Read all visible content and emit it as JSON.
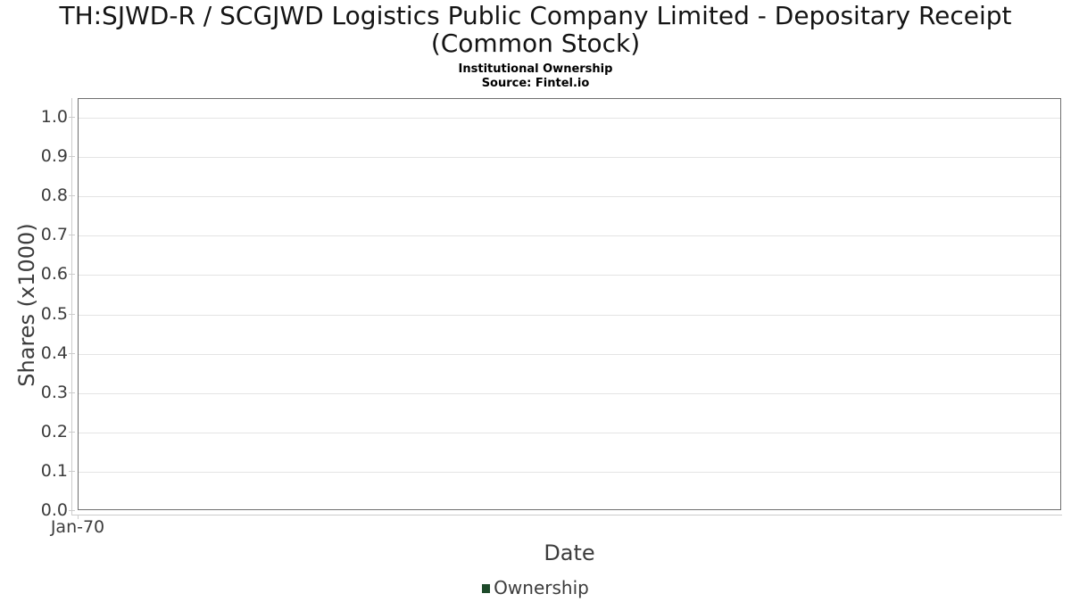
{
  "title_lines": [
    "TH:SJWD-R / SCGJWD Logistics Public Company Limited - Depositary Receipt",
    "(Common Stock)"
  ],
  "chart_data": {
    "type": "line",
    "title": "TH:SJWD-R / SCGJWD Logistics Public Company Limited - Depositary Receipt (Common Stock)",
    "subtitle": "Institutional Ownership",
    "source": "Source: Fintel.io",
    "xlabel": "Date",
    "ylabel": "Shares (x1000)",
    "ylim": [
      0.0,
      1.05
    ],
    "yticks": [
      "1.0",
      "0.9",
      "0.8",
      "0.7",
      "0.6",
      "0.5",
      "0.4",
      "0.3",
      "0.2",
      "0.1",
      "0.0"
    ],
    "xticks": [
      "Jan-70"
    ],
    "grid": true,
    "legend_position": "bottom",
    "legend": [
      {
        "name": "Ownership",
        "color": "#1d4a2a",
        "marker": "square"
      }
    ],
    "series": [
      {
        "name": "Ownership",
        "x": [],
        "y": []
      }
    ]
  },
  "colors": {
    "plot_border": "#6f6f6f",
    "gridline": "#e4e4e4",
    "axis_line": "#cccccc",
    "text": "#3c3c3c",
    "series_ownership": "#1d4a2a"
  }
}
